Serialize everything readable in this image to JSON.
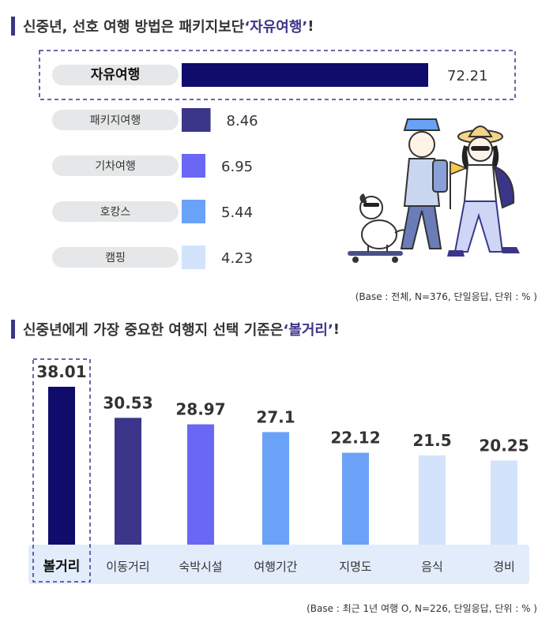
{
  "section1": {
    "title_prefix": "신중년, 선호 여행 방법은 패키지보단 ",
    "title_highlight": "‘자유여행’",
    "title_suffix": "!",
    "note": "(Base : 전체, N=376, 단일응답, 단위 : % )"
  },
  "section2": {
    "title_prefix": "신중년에게 가장 중요한 여행지 선택 기준은 ",
    "title_highlight": "‘볼거리’",
    "title_suffix": "!",
    "note": "(Base : 최근 1년 여행 O, N=226, 단일응답, 단위 : % )"
  },
  "chart_data": [
    {
      "type": "bar",
      "orientation": "horizontal",
      "categories": [
        "자유여행",
        "패키지여행",
        "기차여행",
        "호캉스",
        "캠핑"
      ],
      "values": [
        72.21,
        8.46,
        6.95,
        5.44,
        4.23
      ],
      "value_labels": [
        "72.21",
        "8.46",
        "6.95",
        "5.44",
        "4.23"
      ],
      "colors": [
        "#0f0c6b",
        "#3b3689",
        "#6b67f5",
        "#6aa2f7",
        "#d2e3fb"
      ],
      "highlight": "자유여행"
    },
    {
      "type": "bar",
      "orientation": "vertical",
      "categories": [
        "볼거리",
        "이동거리",
        "숙박시설",
        "여행기간",
        "지명도",
        "음식",
        "경비"
      ],
      "values": [
        38.01,
        30.53,
        28.97,
        27.1,
        22.12,
        21.5,
        20.25
      ],
      "value_labels": [
        "38.01",
        "30.53",
        "28.97",
        "27.1",
        "22.12",
        "21.5",
        "20.25"
      ],
      "colors": [
        "#0f0c6b",
        "#3b3689",
        "#6b67f5",
        "#6aa2f7",
        "#6aa2f7",
        "#d2e3fb",
        "#d2e3fb"
      ],
      "highlight": "볼거리"
    }
  ]
}
